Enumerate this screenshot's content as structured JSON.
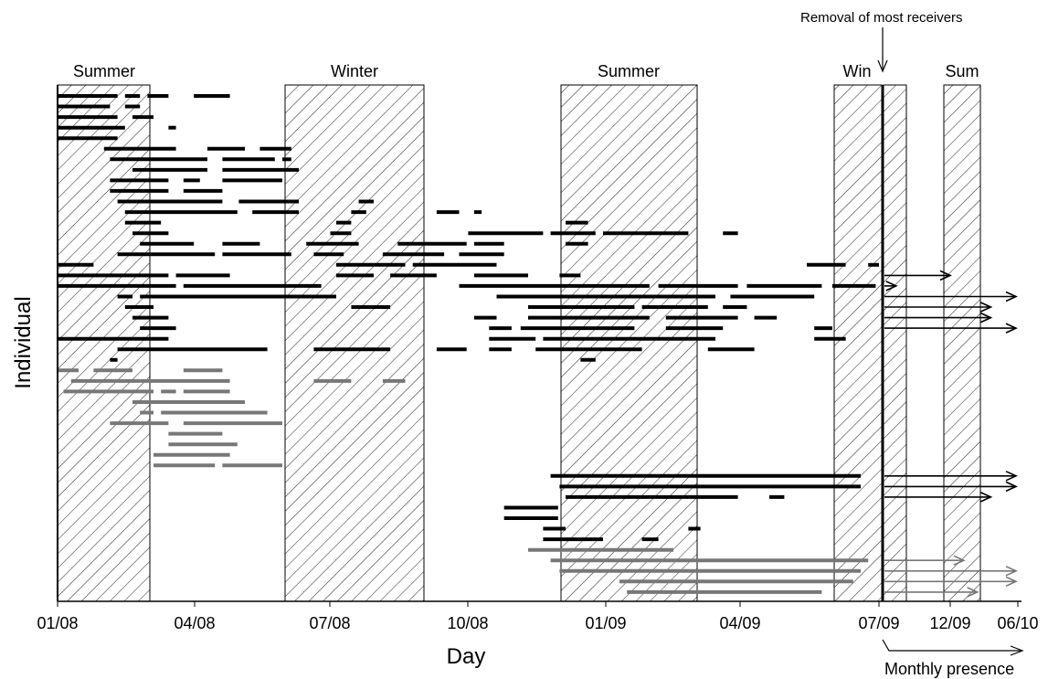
{
  "chart_data": {
    "type": "gantt-timeline",
    "xlabel": "Day",
    "ylabel": "Individual",
    "x_ticks": [
      "01/08",
      "04/08",
      "07/08",
      "10/08",
      "01/09",
      "04/09",
      "07/09",
      "12/09",
      "06/10"
    ],
    "season_labels": [
      "Summer",
      "Winter",
      "Summer",
      "Win",
      "Sum"
    ],
    "seasons": [
      {
        "label": "Summer",
        "start": "2008-01-01",
        "end": "2008-03-10"
      },
      {
        "label": "Winter",
        "start": "2008-06-15",
        "end": "2008-09-25"
      },
      {
        "label": "Summer",
        "start": "2008-12-25",
        "end": "2009-03-30"
      },
      {
        "label": "Win",
        "start": "2009-06-10",
        "end": "2009-07-10"
      },
      {
        "label": "Sum",
        "start_month": "2009-12",
        "end_month": "2010-02"
      }
    ],
    "annotations": {
      "removal": "Removal of most receivers",
      "removal_date": "2009-07-09",
      "monthly": "Monthly presence",
      "axis_break_note": "after 07/09 the axis switches to monthly presence"
    },
    "series_colors": {
      "group_black": "#000000",
      "group_gray": "#777777"
    },
    "detection_tracks": [
      {
        "color": "black",
        "segments": [
          [
            "2008-01-01",
            "2008-02-10"
          ],
          [
            "2008-02-15",
            "2008-02-25"
          ],
          [
            "2008-03-01",
            "2008-03-15"
          ],
          [
            "2008-04-01",
            "2008-04-25"
          ]
        ]
      },
      {
        "color": "black",
        "segments": [
          [
            "2008-01-01",
            "2008-02-05"
          ],
          [
            "2008-02-15",
            "2008-02-25"
          ]
        ]
      },
      {
        "color": "black",
        "segments": [
          [
            "2008-01-01",
            "2008-02-10"
          ],
          [
            "2008-02-20",
            "2008-03-05"
          ]
        ]
      },
      {
        "color": "black",
        "segments": [
          [
            "2008-01-01",
            "2008-02-15"
          ],
          [
            "2008-03-15",
            "2008-03-20"
          ]
        ]
      },
      {
        "color": "black",
        "segments": [
          [
            "2008-01-01",
            "2008-02-10"
          ]
        ]
      },
      {
        "color": "black",
        "segments": [
          [
            "2008-02-01",
            "2008-03-20"
          ],
          [
            "2008-04-10",
            "2008-05-05"
          ],
          [
            "2008-05-15",
            "2008-06-05"
          ]
        ]
      },
      {
        "color": "black",
        "segments": [
          [
            "2008-02-05",
            "2008-04-10"
          ],
          [
            "2008-04-20",
            "2008-05-25"
          ],
          [
            "2008-05-30",
            "2008-06-05"
          ]
        ]
      },
      {
        "color": "black",
        "segments": [
          [
            "2008-02-20",
            "2008-04-10"
          ],
          [
            "2008-04-20",
            "2008-06-10"
          ]
        ]
      },
      {
        "color": "black",
        "segments": [
          [
            "2008-02-05",
            "2008-03-15"
          ],
          [
            "2008-03-25",
            "2008-04-05"
          ],
          [
            "2008-04-20",
            "2008-05-30"
          ]
        ]
      },
      {
        "color": "black",
        "segments": [
          [
            "2008-02-05",
            "2008-03-15"
          ],
          [
            "2008-03-25",
            "2008-04-20"
          ]
        ]
      },
      {
        "color": "black",
        "segments": [
          [
            "2008-02-10",
            "2008-04-20"
          ],
          [
            "2008-05-01",
            "2008-06-10"
          ],
          [
            "2008-07-20",
            "2008-07-30"
          ]
        ]
      },
      {
        "color": "black",
        "segments": [
          [
            "2008-02-15",
            "2008-04-30"
          ],
          [
            "2008-05-10",
            "2008-06-10"
          ],
          [
            "2008-07-15",
            "2008-07-25"
          ],
          [
            "2008-09-10",
            "2008-09-25"
          ],
          [
            "2008-10-05",
            "2008-10-10"
          ]
        ]
      },
      {
        "color": "black",
        "segments": [
          [
            "2008-02-15",
            "2008-03-10"
          ],
          [
            "2008-07-05",
            "2008-07-15"
          ],
          [
            "2008-12-05",
            "2008-12-20"
          ]
        ]
      },
      {
        "color": "black",
        "segments": [
          [
            "2008-02-20",
            "2008-03-15"
          ],
          [
            "2008-07-01",
            "2008-07-15"
          ],
          [
            "2008-10-01",
            "2008-11-20"
          ],
          [
            "2008-11-25",
            "2008-12-25"
          ],
          [
            "2008-12-30",
            "2009-02-25"
          ],
          [
            "2009-03-20",
            "2009-03-30"
          ]
        ]
      },
      {
        "color": "black",
        "segments": [
          [
            "2008-02-25",
            "2008-04-01"
          ],
          [
            "2008-04-20",
            "2008-05-15"
          ],
          [
            "2008-06-15",
            "2008-07-20"
          ],
          [
            "2008-08-15",
            "2008-09-30"
          ],
          [
            "2008-10-05",
            "2008-10-25"
          ],
          [
            "2008-12-05",
            "2008-12-20"
          ]
        ]
      },
      {
        "color": "black",
        "segments": [
          [
            "2008-02-10",
            "2008-04-15"
          ],
          [
            "2008-04-20",
            "2008-06-05"
          ],
          [
            "2008-06-20",
            "2008-07-10"
          ],
          [
            "2008-08-05",
            "2008-09-15"
          ],
          [
            "2008-09-25",
            "2008-10-25"
          ]
        ]
      },
      {
        "color": "black",
        "segments": [
          [
            "2008-01-01",
            "2008-01-25"
          ],
          [
            "2008-07-05",
            "2008-08-20"
          ],
          [
            "2008-08-25",
            "2008-10-20"
          ],
          [
            "2009-05-15",
            "2009-06-10"
          ],
          [
            "2009-06-25",
            "2009-07-05"
          ]
        ]
      },
      {
        "color": "black",
        "segments": [
          [
            "2008-01-01",
            "2008-03-15"
          ],
          [
            "2008-03-20",
            "2008-04-25"
          ],
          [
            "2008-07-05",
            "2008-07-30"
          ],
          [
            "2008-08-10",
            "2008-09-10"
          ],
          [
            "2008-10-05",
            "2008-11-10"
          ],
          [
            "2008-12-01",
            "2008-12-15"
          ]
        ],
        "arrow_month": "2009-12"
      },
      {
        "color": "black",
        "segments": [
          [
            "2008-01-01",
            "2008-03-20"
          ],
          [
            "2008-03-25",
            "2008-06-25"
          ],
          [
            "2008-09-25",
            "2009-01-30"
          ],
          [
            "2009-02-05",
            "2009-03-30"
          ],
          [
            "2009-04-05",
            "2009-05-25"
          ],
          [
            "2009-06-01",
            "2009-06-30"
          ]
        ],
        "arrow_month": "2009-08"
      },
      {
        "color": "black",
        "segments": [
          [
            "2008-02-10",
            "2008-02-20"
          ],
          [
            "2008-02-25",
            "2008-07-05"
          ],
          [
            "2008-10-20",
            "2009-03-15"
          ],
          [
            "2009-03-25",
            "2009-05-20"
          ]
        ],
        "arrow_month": "2010-05"
      },
      {
        "color": "black",
        "segments": [
          [
            "2008-02-15",
            "2008-03-05"
          ],
          [
            "2008-07-15",
            "2008-08-10"
          ],
          [
            "2008-11-10",
            "2009-01-20"
          ],
          [
            "2009-01-25",
            "2009-03-10"
          ],
          [
            "2009-03-20",
            "2009-04-05"
          ]
        ],
        "arrow_month": "2010-03"
      },
      {
        "color": "black",
        "segments": [
          [
            "2008-02-20",
            "2008-03-15"
          ],
          [
            "2008-10-05",
            "2008-10-20"
          ],
          [
            "2008-11-10",
            "2009-01-30"
          ],
          [
            "2009-02-10",
            "2009-03-30"
          ],
          [
            "2009-04-10",
            "2009-04-25"
          ]
        ],
        "arrow_month": "2010-03"
      },
      {
        "color": "black",
        "segments": [
          [
            "2008-02-25",
            "2008-03-20"
          ],
          [
            "2008-10-15",
            "2008-10-30"
          ],
          [
            "2008-11-05",
            "2009-01-20"
          ],
          [
            "2009-02-10",
            "2009-03-20"
          ],
          [
            "2009-05-20",
            "2009-06-01"
          ]
        ],
        "arrow_month": "2010-05"
      },
      {
        "color": "black",
        "segments": [
          [
            "2008-01-01",
            "2008-03-15"
          ],
          [
            "2008-10-15",
            "2008-11-15"
          ],
          [
            "2008-11-20",
            "2009-03-15"
          ],
          [
            "2009-05-20",
            "2009-06-10"
          ]
        ]
      },
      {
        "color": "black",
        "segments": [
          [
            "2008-02-10",
            "2008-05-20"
          ],
          [
            "2008-06-20",
            "2008-08-10"
          ],
          [
            "2008-09-10",
            "2008-09-30"
          ],
          [
            "2008-10-15",
            "2008-10-30"
          ],
          [
            "2008-11-15",
            "2009-01-25"
          ],
          [
            "2009-03-10",
            "2009-04-10"
          ]
        ]
      },
      {
        "color": "black",
        "segments": [
          [
            "2008-02-05",
            "2008-02-10"
          ],
          [
            "2008-12-15",
            "2008-12-25"
          ]
        ]
      },
      {
        "color": "gray",
        "segments": [
          [
            "2008-01-01",
            "2008-01-15"
          ],
          [
            "2008-01-25",
            "2008-02-20"
          ],
          [
            "2008-03-25",
            "2008-04-20"
          ]
        ]
      },
      {
        "color": "gray",
        "segments": [
          [
            "2008-01-10",
            "2008-02-25"
          ],
          [
            "2008-02-25",
            "2008-04-25"
          ],
          [
            "2008-06-20",
            "2008-07-15"
          ],
          [
            "2008-08-05",
            "2008-08-20"
          ]
        ]
      },
      {
        "color": "gray",
        "segments": [
          [
            "2008-01-05",
            "2008-03-05"
          ],
          [
            "2008-03-10",
            "2008-03-20"
          ],
          [
            "2008-03-25",
            "2008-04-25"
          ]
        ]
      },
      {
        "color": "gray",
        "segments": [
          [
            "2008-02-20",
            "2008-05-05"
          ]
        ]
      },
      {
        "color": "gray",
        "segments": [
          [
            "2008-02-25",
            "2008-03-05"
          ],
          [
            "2008-03-10",
            "2008-05-20"
          ]
        ]
      },
      {
        "color": "gray",
        "segments": [
          [
            "2008-02-05",
            "2008-03-15"
          ],
          [
            "2008-03-25",
            "2008-05-30"
          ]
        ]
      },
      {
        "color": "gray",
        "segments": [
          [
            "2008-03-15",
            "2008-04-20"
          ]
        ]
      },
      {
        "color": "gray",
        "segments": [
          [
            "2008-03-15",
            "2008-04-30"
          ]
        ]
      },
      {
        "color": "gray",
        "segments": [
          [
            "2008-03-05",
            "2008-04-25"
          ]
        ]
      },
      {
        "color": "gray",
        "segments": [
          [
            "2008-03-05",
            "2008-04-15"
          ],
          [
            "2008-04-20",
            "2008-05-30"
          ]
        ]
      },
      {
        "color": "black",
        "segments": [
          [
            "2008-11-25",
            "2009-06-20"
          ]
        ],
        "arrow_month": "2010-05"
      },
      {
        "color": "black",
        "segments": [
          [
            "2008-12-01",
            "2009-06-20"
          ]
        ],
        "arrow_month": "2010-05"
      },
      {
        "color": "black",
        "segments": [
          [
            "2008-12-05",
            "2009-03-30"
          ],
          [
            "2009-04-20",
            "2009-04-30"
          ]
        ],
        "arrow_month": "2010-03"
      },
      {
        "color": "black",
        "segments": [
          [
            "2008-10-25",
            "2008-11-30"
          ]
        ]
      },
      {
        "color": "black",
        "segments": [
          [
            "2008-10-25",
            "2008-11-30"
          ]
        ]
      },
      {
        "color": "black",
        "segments": [
          [
            "2008-11-20",
            "2008-12-05"
          ],
          [
            "2009-02-25",
            "2009-03-05"
          ]
        ]
      },
      {
        "color": "black",
        "segments": [
          [
            "2008-11-20",
            "2008-12-30"
          ],
          [
            "2009-01-25",
            "2009-02-05"
          ]
        ]
      },
      {
        "color": "gray",
        "segments": [
          [
            "2008-11-10",
            "2009-02-15"
          ]
        ]
      },
      {
        "color": "gray",
        "segments": [
          [
            "2008-11-25",
            "2009-06-25"
          ]
        ],
        "arrow_month": "2010-01"
      },
      {
        "color": "gray",
        "segments": [
          [
            "2008-12-01",
            "2009-06-20"
          ]
        ],
        "arrow_month": "2010-05"
      },
      {
        "color": "gray",
        "segments": [
          [
            "2009-01-10",
            "2009-06-15"
          ]
        ],
        "arrow_month": "2010-05"
      },
      {
        "color": "gray",
        "segments": [
          [
            "2009-01-15",
            "2009-05-25"
          ]
        ],
        "arrow_month": "2010-02"
      }
    ]
  }
}
